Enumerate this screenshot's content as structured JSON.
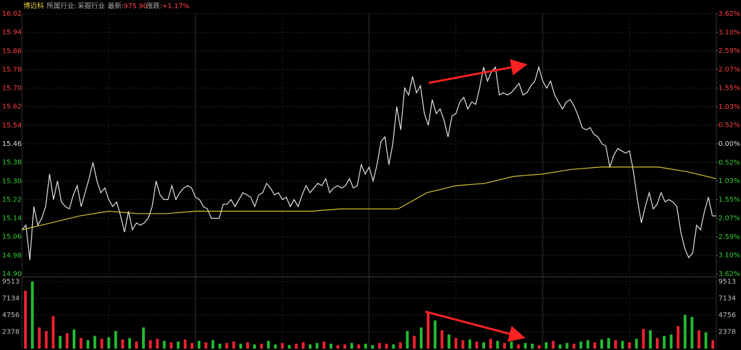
{
  "header": {
    "name": "博迈科",
    "industry_label": "所属行业:",
    "industry": "采掘行业",
    "latest_label": "最新:",
    "latest": "975.90",
    "change_label": "涨跌:",
    "change": "+1.17%"
  },
  "chart_data": [
    {
      "type": "line",
      "ylim": [
        14.9,
        16.02
      ],
      "yticks": [
        16.02,
        15.94,
        15.86,
        15.78,
        {
          "value": 15.7,
          "label": "15.70"
        },
        15.62,
        15.54,
        15.46,
        15.38,
        {
          "value": 15.3,
          "label": "15.30"
        },
        15.22,
        15.14,
        15.06,
        14.98,
        {
          "value": 14.9,
          "label": "14.90"
        }
      ],
      "y2lim": [
        -3.62,
        3.62
      ],
      "y2ticks": [
        {
          "value": 3.62,
          "label": "3.62%"
        },
        {
          "value": 3.1,
          "label": "3.10%"
        },
        {
          "value": 2.59,
          "label": "2.59%"
        },
        {
          "value": 2.07,
          "label": "2.07%"
        },
        {
          "value": 1.55,
          "label": "1.55%"
        },
        {
          "value": 1.03,
          "label": "1.03%"
        },
        {
          "value": 0.52,
          "label": "0.52%"
        },
        {
          "value": 0,
          "label": "0.00%"
        },
        {
          "value": -0.52,
          "label": "0.52%"
        },
        {
          "value": -1.03,
          "label": "1.03%"
        },
        {
          "value": -1.55,
          "label": "1.55%"
        },
        {
          "value": -2.07,
          "label": "2.07%"
        },
        {
          "value": -2.59,
          "label": "2.59%"
        },
        {
          "value": -3.1,
          "label": "3.10%"
        },
        {
          "value": -3.62,
          "label": "3.62%"
        }
      ],
      "series": [
        {
          "color": "#e8e8e8",
          "values": [
            15.09,
            15.11,
            14.96,
            15.19,
            15.11,
            15.14,
            15.19,
            15.33,
            15.22,
            15.3,
            15.21,
            15.19,
            15.18,
            15.24,
            15.28,
            15.19,
            15.25,
            15.31,
            15.38,
            15.3,
            15.25,
            15.27,
            15.22,
            15.19,
            15.21,
            15.15,
            15.08,
            15.17,
            15.09,
            15.12,
            15.11,
            15.12,
            15.14,
            15.19,
            15.3,
            15.24,
            15.22,
            15.22,
            15.28,
            15.22,
            15.25,
            15.27,
            15.28,
            15.27,
            15.23,
            15.22,
            15.19,
            15.18,
            15.14,
            15.14,
            15.14,
            15.2,
            15.2,
            15.22,
            15.19,
            15.22,
            15.25,
            15.24,
            15.23,
            15.19,
            15.24,
            15.25,
            15.29,
            15.27,
            15.24,
            15.25,
            15.22,
            15.23,
            15.19,
            15.22,
            15.19,
            15.24,
            15.28,
            15.25,
            15.27,
            15.29,
            15.28,
            15.31,
            15.25,
            15.27,
            15.28,
            15.27,
            15.28,
            15.31,
            15.27,
            15.28,
            15.37,
            15.33,
            15.36,
            15.3,
            15.37,
            15.47,
            15.49,
            15.37,
            15.46,
            15.62,
            15.52,
            15.7,
            15.67,
            15.75,
            15.68,
            15.71,
            15.59,
            15.54,
            15.65,
            15.59,
            15.61,
            15.56,
            15.49,
            15.58,
            15.59,
            15.64,
            15.66,
            15.61,
            15.64,
            15.63,
            15.7,
            15.79,
            15.73,
            15.77,
            15.79,
            15.67,
            15.68,
            15.67,
            15.68,
            15.7,
            15.72,
            15.67,
            15.68,
            15.71,
            15.73,
            15.79,
            15.73,
            15.7,
            15.73,
            15.67,
            15.64,
            15.61,
            15.64,
            15.65,
            15.62,
            15.58,
            15.53,
            15.52,
            15.53,
            15.5,
            15.49,
            15.46,
            15.45,
            15.36,
            15.41,
            15.44,
            15.43,
            15.42,
            15.43,
            15.34,
            15.22,
            15.12,
            15.19,
            15.25,
            15.18,
            15.2,
            15.25,
            15.21,
            15.22,
            15.21,
            15.19,
            15.08,
            15.01,
            14.97,
            14.99,
            15.11,
            15.09,
            15.17,
            15.23,
            15.15,
            15.15
          ]
        },
        {
          "color": "#d8c830",
          "values": [
            15.09,
            15.12,
            15.15,
            15.17,
            15.16,
            15.16,
            15.17,
            15.17,
            15.17,
            15.17,
            15.17,
            15.18,
            15.18,
            15.18,
            15.25,
            15.28,
            15.29,
            15.32,
            15.33,
            15.35,
            15.36,
            15.36,
            15.36,
            15.34,
            15.31
          ]
        }
      ]
    },
    {
      "type": "bar",
      "ylim": [
        0,
        9513
      ],
      "yticks": [
        9513,
        7134,
        4756,
        2378
      ],
      "values": [
        8200,
        9500,
        3000,
        2500,
        4600,
        1800,
        2200,
        2700,
        1500,
        1200,
        1800,
        1400,
        1600,
        2500,
        1300,
        1500,
        1000,
        3000,
        1200,
        1400,
        1100,
        900,
        1000,
        1300,
        800,
        1100,
        900,
        1200,
        700,
        800,
        1000,
        700,
        900,
        600,
        700,
        1100,
        600,
        800,
        500,
        700,
        900,
        600,
        800,
        1000,
        700,
        500,
        600,
        800,
        600,
        700,
        500,
        800,
        700,
        600,
        900,
        2500,
        1800,
        3000,
        5200,
        4000,
        2600,
        2000,
        1500,
        1200,
        1300,
        1000,
        900,
        1400,
        1100,
        800,
        1000,
        600,
        800,
        700,
        500,
        900,
        1100,
        600,
        800,
        700,
        1000,
        1200,
        900,
        1300,
        1500,
        1200,
        1100,
        900,
        1400,
        2800,
        2600,
        1500,
        1800,
        2000,
        3200,
        4800,
        4500,
        2600,
        2300,
        1200
      ],
      "colors": [
        "#e23",
        "#2b3",
        "#e23",
        "#e23",
        "#e23",
        "#2b3",
        "#e23",
        "#2b3",
        "#e23",
        "#2b3",
        "#2b3",
        "#e23",
        "#2b3",
        "#2b3",
        "#e23",
        "#2b3",
        "#e23",
        "#2b3",
        "#e23",
        "#e23",
        "#2b3",
        "#e23",
        "#2b3",
        "#e23",
        "#e23",
        "#2b3",
        "#e23",
        "#2b3",
        "#2b3",
        "#e23",
        "#e23",
        "#2b3",
        "#e23",
        "#2b3",
        "#e23",
        "#2b3",
        "#2b3",
        "#e23",
        "#2b3",
        "#e23",
        "#e23",
        "#2b3",
        "#2b3",
        "#e23",
        "#2b3",
        "#e23",
        "#e23",
        "#2b3",
        "#e23",
        "#2b3",
        "#2b3",
        "#e23",
        "#e23",
        "#2b3",
        "#e23",
        "#2b3",
        "#e23",
        "#2b3",
        "#e23",
        "#2b3",
        "#e23",
        "#2b3",
        "#e23",
        "#e23",
        "#2b3",
        "#e23",
        "#2b3",
        "#e23",
        "#2b3",
        "#e23",
        "#2b3",
        "#e23",
        "#2b3",
        "#2b3",
        "#e23",
        "#2b3",
        "#e23",
        "#2b3",
        "#2b3",
        "#e23",
        "#2b3",
        "#2b3",
        "#e23",
        "#2b3",
        "#2b3",
        "#e23",
        "#2b3",
        "#e23",
        "#2b3",
        "#e23",
        "#2b3",
        "#e23",
        "#2b3",
        "#2b3",
        "#e23",
        "#2b3",
        "#2b3",
        "#e23",
        "#2b3",
        "#e23"
      ]
    }
  ]
}
